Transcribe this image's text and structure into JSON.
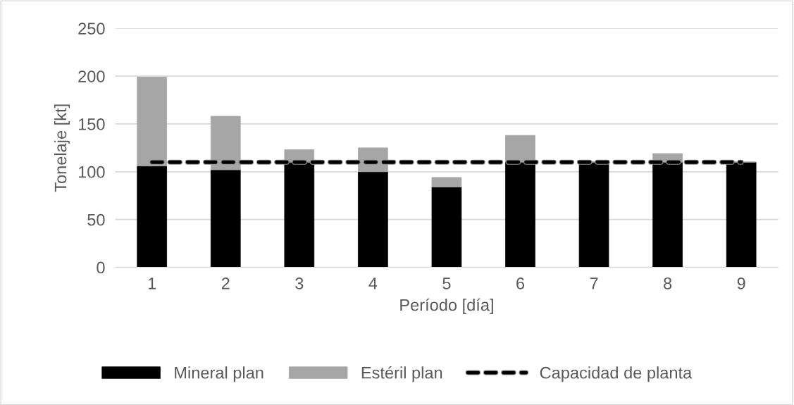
{
  "chart_data": {
    "type": "bar",
    "stacked": true,
    "xlabel": "Período [día]",
    "ylabel": "Tonelaje [kt]",
    "categories": [
      "1",
      "2",
      "3",
      "4",
      "5",
      "6",
      "7",
      "8",
      "9"
    ],
    "series": [
      {
        "name": "Mineral plan",
        "color": "#000000",
        "values": [
          106,
          102,
          110,
          100,
          84,
          110,
          110,
          110,
          110
        ]
      },
      {
        "name": "Estéril plan",
        "color": "#a6a6a6",
        "values": [
          93,
          56,
          13,
          25,
          10,
          28,
          0,
          9,
          0
        ]
      },
      {
        "name": "Capacidad de planta",
        "type": "line",
        "line_style": "dashed",
        "color": "#000000",
        "values": [
          110,
          110,
          110,
          110,
          110,
          110,
          110,
          110,
          110
        ]
      }
    ],
    "ylim": [
      0,
      250
    ],
    "yticks": [
      0,
      50,
      100,
      150,
      200,
      250
    ],
    "grid": "y",
    "legend": "bottom"
  }
}
